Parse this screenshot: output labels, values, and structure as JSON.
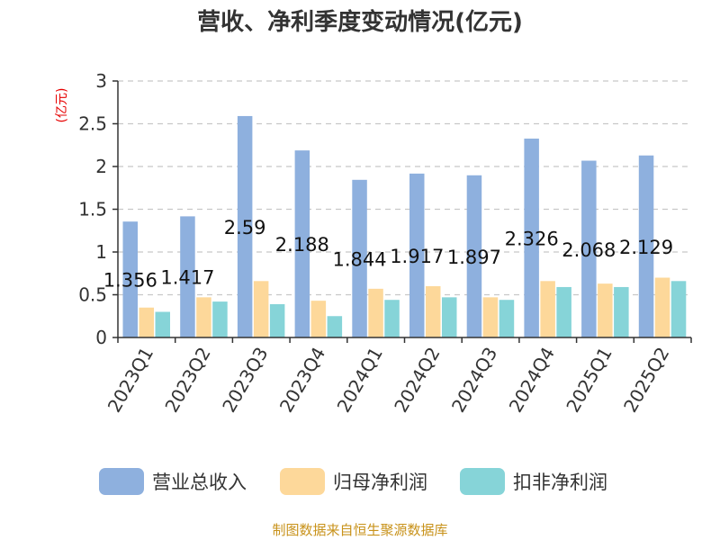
{
  "chart_data": {
    "type": "bar",
    "title": "营收、净利季度变动情况(亿元)",
    "unit_label": "(亿元)",
    "categories": [
      "2023Q1",
      "2023Q2",
      "2023Q3",
      "2023Q4",
      "2024Q1",
      "2024Q2",
      "2024Q3",
      "2024Q4",
      "2025Q1",
      "2025Q2"
    ],
    "series": [
      {
        "name": "营业总收入",
        "color": "#8eb0de",
        "values": [
          1.356,
          1.417,
          2.59,
          2.188,
          1.844,
          1.917,
          1.897,
          2.326,
          2.068,
          2.129
        ]
      },
      {
        "name": "归母净利润",
        "color": "#fdd89a",
        "values": [
          0.35,
          0.47,
          0.66,
          0.43,
          0.57,
          0.6,
          0.47,
          0.66,
          0.63,
          0.7
        ]
      },
      {
        "name": "扣非净利润",
        "color": "#86d4d8",
        "values": [
          0.3,
          0.42,
          0.39,
          0.25,
          0.44,
          0.47,
          0.44,
          0.59,
          0.59,
          0.66
        ]
      }
    ],
    "data_labels": [
      "1.356",
      "1.417",
      "2.59",
      "2.188",
      "1.844",
      "1.917",
      "1.897",
      "2.326",
      "2.068",
      "2.129"
    ],
    "y_ticks": [
      "0",
      "0.5",
      "1",
      "1.5",
      "2",
      "2.5",
      "3"
    ],
    "ylim": [
      0,
      3
    ],
    "grid": true,
    "legend_position": "bottom"
  },
  "footer": {
    "source": "制图数据来自恒生聚源数据库"
  }
}
